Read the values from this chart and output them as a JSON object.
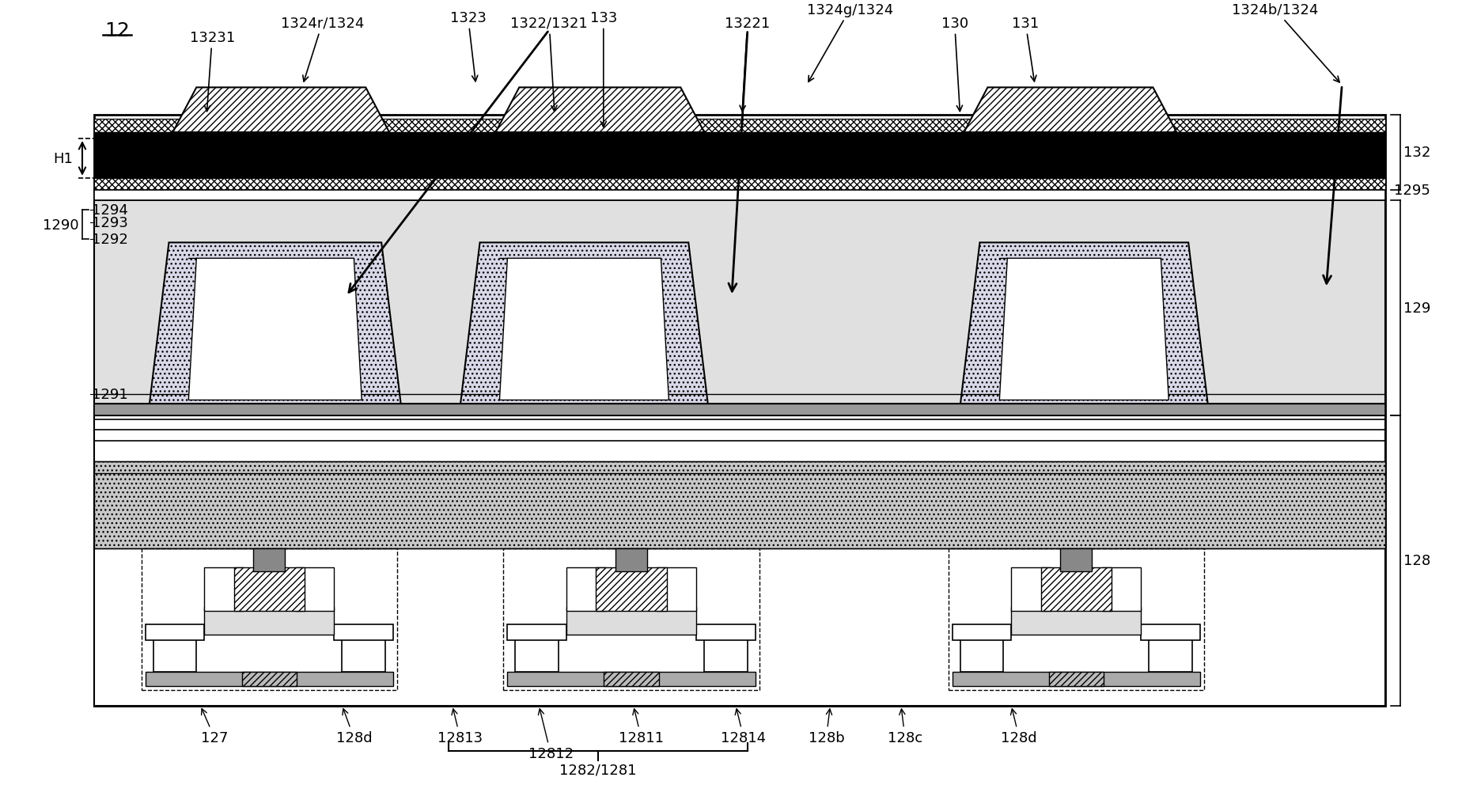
{
  "fig_width": 18.49,
  "fig_height": 10.12,
  "bg_color": "#ffffff",
  "labels": {
    "top_left": "12",
    "h1": "H1",
    "l132": "132",
    "l1295": "1295",
    "l129": "129",
    "l128": "128",
    "l1290": "1290",
    "l1294": "1294",
    "l1293": "1293",
    "l1292": "1292",
    "l1291": "1291",
    "l13231": "13231",
    "l1324r": "1324r/1324",
    "l1323": "1323",
    "l1322": "1322/1321",
    "l133": "133",
    "l13221": "13221",
    "l1324g": "1324g/1324",
    "l130": "130",
    "l131": "131",
    "l1324b": "1324b/1324",
    "l127": "127",
    "l128d_l": "128d",
    "l12813": "12813",
    "l12812": "12812",
    "l12811": "12811",
    "l12814": "12814",
    "l128b": "128b",
    "l128c": "128c",
    "l128d_r": "128d",
    "l1282": "1282/1281"
  }
}
